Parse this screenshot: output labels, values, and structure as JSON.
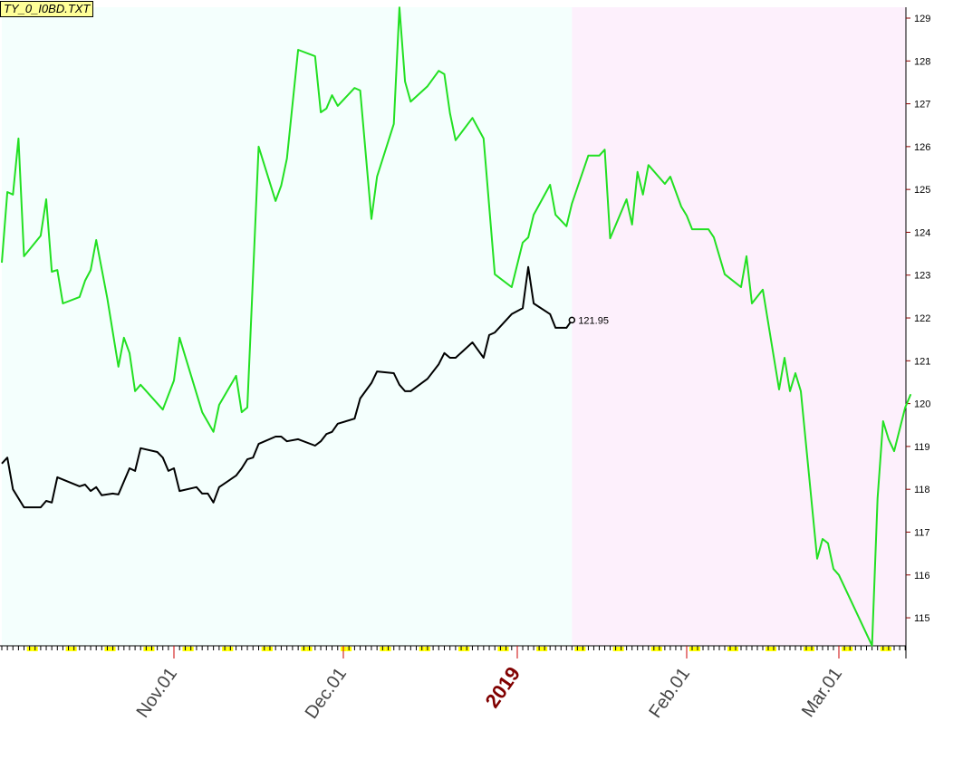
{
  "chart_data": {
    "type": "line",
    "title": "TY_0_I0BD.TXT",
    "xlabel": "",
    "ylabel": "",
    "ylim": [
      114.3,
      129.3
    ],
    "xlim": [
      "2018-10-01",
      "2019-03-13"
    ],
    "y_ticks": [
      115,
      116,
      117,
      118,
      119,
      120,
      121,
      122,
      123,
      124,
      125,
      126,
      127,
      128,
      129
    ],
    "x_tick_labels": [
      {
        "date": "2018-11-01",
        "label": "Nov.01"
      },
      {
        "date": "2018-12-01",
        "label": "Dec.01"
      },
      {
        "date": "2019-01-01",
        "label": "2019",
        "highlight": true
      },
      {
        "date": "2019-02-01",
        "label": "Feb.01"
      },
      {
        "date": "2019-03-01",
        "label": "Mar.01"
      }
    ],
    "background_regions": [
      {
        "from": "2018-10-01",
        "to": "2019-01-11",
        "color": "#f4fffd"
      },
      {
        "from": "2019-01-11",
        "to": "2019-03-13",
        "color": "#fdf0fc"
      }
    ],
    "colors": {
      "series_green": "#22e022",
      "series_black": "#000000",
      "year_label": "#800000",
      "month_tick": "#cc0000",
      "weekend_marker": "#ffff00",
      "title_bg": "#ffff99"
    },
    "grid": false,
    "end_label": "121.95",
    "series": [
      {
        "color": "#22e022",
        "points": [
          [
            "2018-10-01",
            123.29
          ],
          [
            "2018-10-02",
            124.94
          ],
          [
            "2018-10-03",
            124.88
          ],
          [
            "2018-10-04",
            126.19
          ],
          [
            "2018-10-05",
            123.44
          ],
          [
            "2018-10-08",
            123.92
          ],
          [
            "2018-10-09",
            124.77
          ],
          [
            "2018-10-10",
            123.08
          ],
          [
            "2018-10-11",
            123.12
          ],
          [
            "2018-10-12",
            122.34
          ],
          [
            "2018-10-15",
            122.49
          ],
          [
            "2018-10-16",
            122.87
          ],
          [
            "2018-10-17",
            123.12
          ],
          [
            "2018-10-18",
            123.82
          ],
          [
            "2018-10-20",
            122.45
          ],
          [
            "2018-10-22",
            120.86
          ],
          [
            "2018-10-23",
            121.54
          ],
          [
            "2018-10-24",
            121.18
          ],
          [
            "2018-10-25",
            120.29
          ],
          [
            "2018-10-26",
            120.44
          ],
          [
            "2018-10-30",
            119.86
          ],
          [
            "2018-11-01",
            120.54
          ],
          [
            "2018-11-02",
            121.54
          ],
          [
            "2018-11-06",
            119.8
          ],
          [
            "2018-11-08",
            119.34
          ],
          [
            "2018-11-09",
            119.97
          ],
          [
            "2018-11-12",
            120.65
          ],
          [
            "2018-11-13",
            119.8
          ],
          [
            "2018-11-14",
            119.91
          ],
          [
            "2018-11-16",
            126.0
          ],
          [
            "2018-11-19",
            124.73
          ],
          [
            "2018-11-20",
            125.09
          ],
          [
            "2018-11-21",
            125.72
          ],
          [
            "2018-11-23",
            128.26
          ],
          [
            "2018-11-26",
            128.11
          ],
          [
            "2018-11-27",
            126.8
          ],
          [
            "2018-11-28",
            126.89
          ],
          [
            "2018-11-29",
            127.2
          ],
          [
            "2018-11-30",
            126.95
          ],
          [
            "2018-12-03",
            127.37
          ],
          [
            "2018-12-04",
            127.31
          ],
          [
            "2018-12-06",
            124.31
          ],
          [
            "2018-12-07",
            125.3
          ],
          [
            "2018-12-10",
            126.53
          ],
          [
            "2018-12-11",
            129.25
          ],
          [
            "2018-12-12",
            127.52
          ],
          [
            "2018-12-13",
            127.05
          ],
          [
            "2018-12-16",
            127.41
          ],
          [
            "2018-12-18",
            127.77
          ],
          [
            "2018-12-19",
            127.69
          ],
          [
            "2018-12-20",
            126.78
          ],
          [
            "2018-12-21",
            126.15
          ],
          [
            "2018-12-24",
            126.67
          ],
          [
            "2018-12-26",
            126.19
          ],
          [
            "2018-12-28",
            123.02
          ],
          [
            "2018-12-31",
            122.72
          ],
          [
            "2019-01-02",
            123.76
          ],
          [
            "2019-01-03",
            123.88
          ],
          [
            "2019-01-04",
            124.41
          ],
          [
            "2019-01-07",
            125.11
          ],
          [
            "2019-01-08",
            124.41
          ],
          [
            "2019-01-10",
            124.14
          ],
          [
            "2019-01-11",
            124.67
          ],
          [
            "2019-01-14",
            125.79
          ],
          [
            "2019-01-16",
            125.79
          ],
          [
            "2019-01-17",
            125.93
          ],
          [
            "2019-01-18",
            123.86
          ],
          [
            "2019-01-21",
            124.77
          ],
          [
            "2019-01-22",
            124.18
          ],
          [
            "2019-01-23",
            125.41
          ],
          [
            "2019-01-24",
            124.88
          ],
          [
            "2019-01-25",
            125.57
          ],
          [
            "2019-01-28",
            125.13
          ],
          [
            "2019-01-29",
            125.3
          ],
          [
            "2019-01-31",
            124.6
          ],
          [
            "2019-02-01",
            124.39
          ],
          [
            "2019-02-02",
            124.07
          ],
          [
            "2019-02-05",
            124.07
          ],
          [
            "2019-02-06",
            123.88
          ],
          [
            "2019-02-08",
            123.02
          ],
          [
            "2019-02-11",
            122.72
          ],
          [
            "2019-02-12",
            123.44
          ],
          [
            "2019-02-13",
            122.34
          ],
          [
            "2019-02-15",
            122.66
          ],
          [
            "2019-02-18",
            120.33
          ],
          [
            "2019-02-19",
            121.07
          ],
          [
            "2019-02-20",
            120.29
          ],
          [
            "2019-02-21",
            120.71
          ],
          [
            "2019-02-22",
            120.29
          ],
          [
            "2019-02-25",
            116.38
          ],
          [
            "2019-02-26",
            116.84
          ],
          [
            "2019-02-27",
            116.74
          ],
          [
            "2019-02-28",
            116.14
          ],
          [
            "2019-03-01",
            116.0
          ],
          [
            "2019-03-07",
            114.35
          ],
          [
            "2019-03-08",
            117.79
          ],
          [
            "2019-03-09",
            119.59
          ],
          [
            "2019-03-10",
            119.17
          ],
          [
            "2019-03-11",
            118.89
          ],
          [
            "2019-03-13",
            119.91
          ],
          [
            "2019-03-14",
            120.22
          ]
        ]
      },
      {
        "color": "#000000",
        "points": [
          [
            "2018-10-01",
            118.6
          ],
          [
            "2018-10-02",
            118.74
          ],
          [
            "2018-10-03",
            118.0
          ],
          [
            "2018-10-05",
            117.58
          ],
          [
            "2018-10-08",
            117.58
          ],
          [
            "2018-10-09",
            117.73
          ],
          [
            "2018-10-10",
            117.69
          ],
          [
            "2018-10-11",
            118.28
          ],
          [
            "2018-10-15",
            118.07
          ],
          [
            "2018-10-16",
            118.11
          ],
          [
            "2018-10-17",
            117.96
          ],
          [
            "2018-10-18",
            118.05
          ],
          [
            "2018-10-19",
            117.86
          ],
          [
            "2018-10-21",
            117.9
          ],
          [
            "2018-10-22",
            117.88
          ],
          [
            "2018-10-24",
            118.49
          ],
          [
            "2018-10-25",
            118.43
          ],
          [
            "2018-10-26",
            118.96
          ],
          [
            "2018-10-29",
            118.87
          ],
          [
            "2018-10-30",
            118.74
          ],
          [
            "2018-10-31",
            118.43
          ],
          [
            "2018-11-01",
            118.49
          ],
          [
            "2018-11-02",
            117.96
          ],
          [
            "2018-11-05",
            118.05
          ],
          [
            "2018-11-06",
            117.9
          ],
          [
            "2018-11-07",
            117.9
          ],
          [
            "2018-11-08",
            117.69
          ],
          [
            "2018-11-09",
            118.05
          ],
          [
            "2018-11-12",
            118.32
          ],
          [
            "2018-11-13",
            118.49
          ],
          [
            "2018-11-14",
            118.7
          ],
          [
            "2018-11-15",
            118.74
          ],
          [
            "2018-11-16",
            119.06
          ],
          [
            "2018-11-19",
            119.23
          ],
          [
            "2018-11-20",
            119.23
          ],
          [
            "2018-11-21",
            119.12
          ],
          [
            "2018-11-23",
            119.17
          ],
          [
            "2018-11-26",
            119.02
          ],
          [
            "2018-11-27",
            119.12
          ],
          [
            "2018-11-28",
            119.29
          ],
          [
            "2018-11-29",
            119.34
          ],
          [
            "2018-11-30",
            119.53
          ],
          [
            "2018-12-03",
            119.65
          ],
          [
            "2018-12-04",
            120.12
          ],
          [
            "2018-12-06",
            120.48
          ],
          [
            "2018-12-07",
            120.75
          ],
          [
            "2018-12-10",
            120.71
          ],
          [
            "2018-12-11",
            120.44
          ],
          [
            "2018-12-12",
            120.29
          ],
          [
            "2018-12-13",
            120.29
          ],
          [
            "2018-12-16",
            120.58
          ],
          [
            "2018-12-18",
            120.92
          ],
          [
            "2018-12-19",
            121.18
          ],
          [
            "2018-12-20",
            121.07
          ],
          [
            "2018-12-21",
            121.07
          ],
          [
            "2018-12-24",
            121.43
          ],
          [
            "2018-12-26",
            121.07
          ],
          [
            "2018-12-27",
            121.6
          ],
          [
            "2018-12-28",
            121.66
          ],
          [
            "2018-12-31",
            122.09
          ],
          [
            "2019-01-02",
            122.23
          ],
          [
            "2019-01-03",
            123.19
          ],
          [
            "2019-01-04",
            122.34
          ],
          [
            "2019-01-07",
            122.09
          ],
          [
            "2019-01-08",
            121.77
          ],
          [
            "2019-01-10",
            121.77
          ],
          [
            "2019-01-11",
            121.95
          ]
        ]
      }
    ]
  }
}
